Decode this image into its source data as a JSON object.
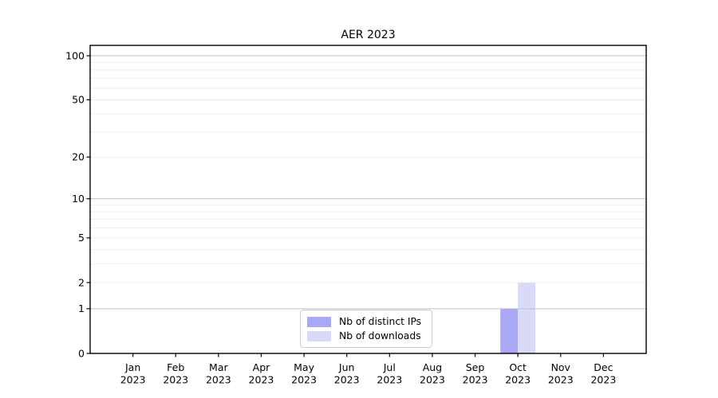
{
  "chart_data": {
    "type": "bar",
    "title": "AER 2023",
    "months": [
      "Jan",
      "Feb",
      "Mar",
      "Apr",
      "May",
      "Jun",
      "Jul",
      "Aug",
      "Sep",
      "Oct",
      "Nov",
      "Dec"
    ],
    "year_label": "2023",
    "series": [
      {
        "name": "Nb of distinct IPs",
        "color": "#a8a8f6",
        "values": [
          0,
          0,
          0,
          0,
          0,
          0,
          0,
          0,
          0,
          1,
          0,
          0
        ]
      },
      {
        "name": "Nb of downloads",
        "color": "#d9d9f8",
        "values": [
          0,
          0,
          0,
          0,
          0,
          0,
          0,
          0,
          0,
          2,
          0,
          0
        ]
      }
    ],
    "y_axis": {
      "scale": "log1p",
      "ticks": [
        0,
        1,
        2,
        5,
        10,
        20,
        50,
        100
      ],
      "major_gridlines": [
        1,
        10,
        100
      ],
      "minor_gridlines": [
        2,
        3,
        4,
        5,
        6,
        7,
        8,
        9,
        20,
        30,
        40,
        50,
        60,
        70,
        80,
        90
      ],
      "ylim": [
        0,
        117
      ]
    },
    "legend": {
      "position": "lower center"
    },
    "colors": {
      "major_grid": "#c0c0c0",
      "minor_grid": "#ececec",
      "axis": "#000000",
      "text": "#000000",
      "background": "#ffffff"
    }
  }
}
